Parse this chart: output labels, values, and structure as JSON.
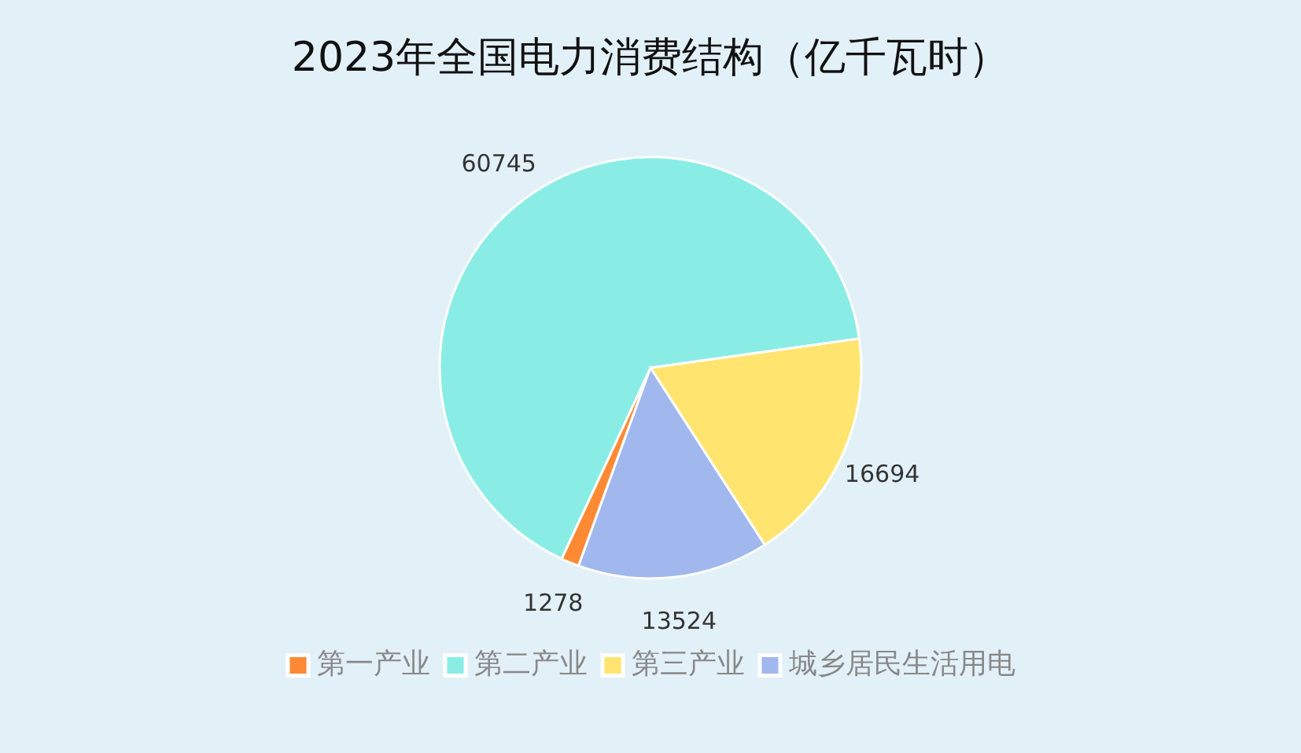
{
  "chart_data": {
    "type": "pie",
    "title": "2023年全国电力消费结构（亿千瓦时）",
    "categories": [
      "第一产业",
      "第二产业",
      "第三产业",
      "城乡居民生活用电"
    ],
    "values": [
      1278,
      60745,
      16694,
      13524
    ],
    "colors": [
      "#ff8a33",
      "#8aede5",
      "#ffe570",
      "#a0b8ee"
    ],
    "data_labels": true,
    "legend": "bottom"
  }
}
